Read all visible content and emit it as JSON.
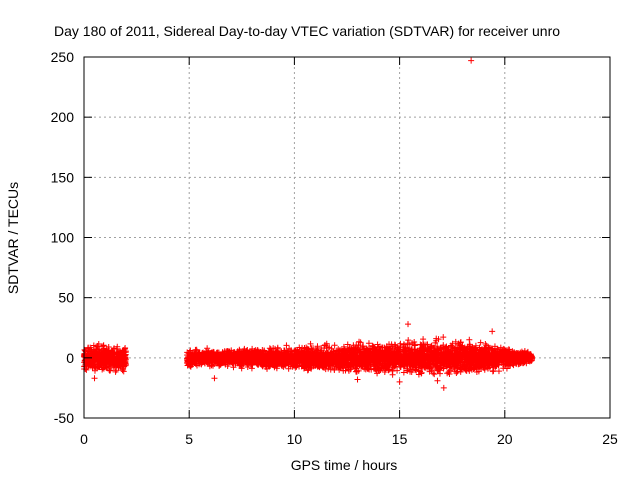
{
  "chart_data": {
    "type": "scatter",
    "title": "Day 180 of 2011, Sidereal Day-to-day VTEC variation (SDTVAR) for receiver unro",
    "xlabel": "GPS time / hours",
    "ylabel": "SDTVAR / TECUs",
    "xlim": [
      0,
      25
    ],
    "ylim": [
      -50,
      250
    ],
    "xticks": [
      0,
      5,
      10,
      15,
      20,
      25
    ],
    "yticks": [
      -50,
      0,
      50,
      100,
      150,
      200,
      250
    ],
    "grid": true,
    "marker": "plus",
    "color": "#ff0000",
    "segments": [
      {
        "x_start": 0.0,
        "x_end": 2.0
      },
      {
        "x_start": 4.9,
        "x_end": 21.3
      }
    ],
    "spread_profile": [
      {
        "x": 0.0,
        "y_low": -14,
        "y_high": 13
      },
      {
        "x": 1.0,
        "y_low": -16,
        "y_high": 15
      },
      {
        "x": 2.0,
        "y_low": -14,
        "y_high": 12
      },
      {
        "x": 4.9,
        "y_low": -10,
        "y_high": 9
      },
      {
        "x": 6.5,
        "y_low": -9,
        "y_high": 9
      },
      {
        "x": 8.0,
        "y_low": -11,
        "y_high": 10
      },
      {
        "x": 10.0,
        "y_low": -12,
        "y_high": 12
      },
      {
        "x": 12.0,
        "y_low": -15,
        "y_high": 14
      },
      {
        "x": 14.0,
        "y_low": -17,
        "y_high": 17
      },
      {
        "x": 16.0,
        "y_low": -18,
        "y_high": 18
      },
      {
        "x": 18.0,
        "y_low": -19,
        "y_high": 19
      },
      {
        "x": 20.0,
        "y_low": -14,
        "y_high": 14
      },
      {
        "x": 21.3,
        "y_low": -6,
        "y_high": 6
      }
    ],
    "outliers": [
      {
        "x": 18.4,
        "y": 247
      },
      {
        "x": 15.4,
        "y": 28
      },
      {
        "x": 19.4,
        "y": 22
      },
      {
        "x": 17.1,
        "y": -25
      },
      {
        "x": 15.0,
        "y": -20
      },
      {
        "x": 0.5,
        "y": -17
      },
      {
        "x": 6.2,
        "y": -17
      },
      {
        "x": 13.0,
        "y": -18
      },
      {
        "x": 16.8,
        "y": -19
      }
    ]
  }
}
